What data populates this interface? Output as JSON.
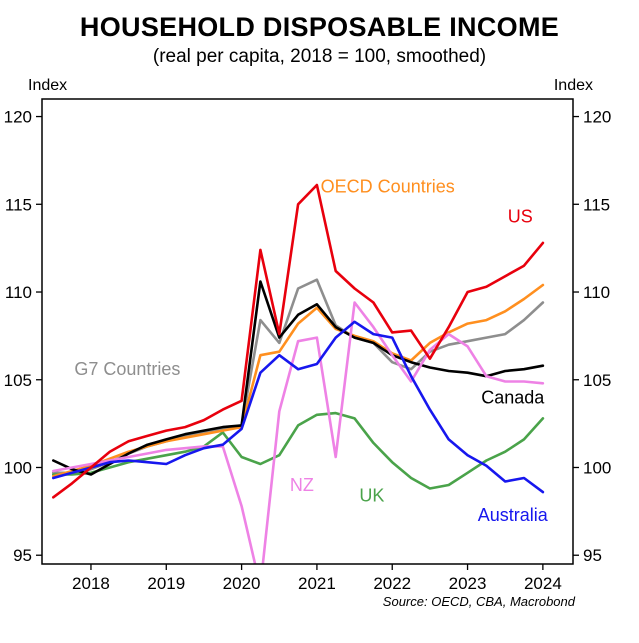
{
  "title": "HOUSEHOLD DISPOSABLE INCOME",
  "subtitle": "(real per capita, 2018 = 100, smoothed)",
  "axis_unit_left": "Index",
  "axis_unit_right": "Index",
  "source": "Source: OECD, CBA, Macrobond",
  "chart_data": {
    "type": "line",
    "title": "HOUSEHOLD DISPOSABLE INCOME",
    "subtitle": "(real per capita, 2018 = 100, smoothed)",
    "ylabel": "Index",
    "x_range": [
      2017.35,
      2024.4
    ],
    "y_range": [
      94.5,
      121
    ],
    "x_ticks": [
      2018,
      2019,
      2020,
      2021,
      2022,
      2023,
      2024
    ],
    "y_ticks": [
      95,
      100,
      105,
      110,
      115,
      120
    ],
    "grid": false,
    "legend": "inline-labels",
    "x": [
      2017.5,
      2017.75,
      2018,
      2018.25,
      2018.5,
      2018.75,
      2019,
      2019.25,
      2019.5,
      2019.75,
      2020,
      2020.25,
      2020.5,
      2020.75,
      2021,
      2021.25,
      2021.5,
      2021.75,
      2022,
      2022.25,
      2022.5,
      2022.75,
      2023,
      2023.25,
      2023.5,
      2023.75,
      2024
    ],
    "series": [
      {
        "name": "G7 Countries",
        "color": "#8e8e8e",
        "values": [
          99.7,
          99.7,
          99.9,
          100.3,
          100.8,
          101.2,
          101.5,
          101.8,
          102.0,
          102.2,
          102.4,
          108.4,
          107.1,
          110.2,
          110.7,
          108.1,
          107.4,
          107.1,
          106.0,
          105.6,
          106.6,
          107.0,
          107.2,
          107.4,
          107.6,
          108.4,
          109.4
        ]
      },
      {
        "name": "UK",
        "color": "#4aa34a",
        "values": [
          99.6,
          99.6,
          99.7,
          100.0,
          100.3,
          100.5,
          100.7,
          100.9,
          101.2,
          102.0,
          100.6,
          100.2,
          100.7,
          102.4,
          103.0,
          103.1,
          102.8,
          101.4,
          100.3,
          99.4,
          98.8,
          99.0,
          99.7,
          100.4,
          100.9,
          101.6,
          102.8
        ]
      },
      {
        "name": "OECD Countries",
        "color": "#ff8f1f",
        "values": [
          99.5,
          99.8,
          100.1,
          100.5,
          100.9,
          101.2,
          101.5,
          101.7,
          101.9,
          102.1,
          102.3,
          106.4,
          106.6,
          108.2,
          109.1,
          107.9,
          107.5,
          107.2,
          106.5,
          106.1,
          107.1,
          107.7,
          108.2,
          108.4,
          108.9,
          109.6,
          110.4
        ]
      },
      {
        "name": "Canada",
        "color": "#000000",
        "values": [
          100.4,
          99.9,
          99.6,
          100.2,
          100.8,
          101.3,
          101.6,
          101.9,
          102.1,
          102.3,
          102.4,
          110.6,
          107.4,
          108.7,
          109.3,
          108.0,
          107.4,
          107.1,
          106.4,
          106.0,
          105.7,
          105.5,
          105.4,
          105.2,
          105.5,
          105.6,
          105.8
        ]
      },
      {
        "name": "NZ",
        "color": "#ee82e5",
        "values": [
          99.8,
          100.0,
          100.2,
          100.4,
          100.6,
          100.8,
          101.0,
          101.1,
          101.2,
          101.2,
          97.8,
          93.2,
          103.2,
          107.2,
          107.4,
          100.6,
          109.4,
          108.0,
          106.4,
          104.9,
          106.7,
          107.6,
          106.9,
          105.2,
          104.9,
          104.9,
          104.8
        ]
      },
      {
        "name": "Australia",
        "color": "#1717ee",
        "values": [
          99.4,
          99.7,
          100.0,
          100.3,
          100.4,
          100.3,
          100.2,
          100.7,
          101.1,
          101.3,
          102.2,
          105.4,
          106.4,
          105.6,
          105.9,
          107.4,
          108.3,
          107.6,
          107.4,
          105.2,
          103.3,
          101.6,
          100.7,
          100.1,
          99.2,
          99.4,
          98.6
        ]
      },
      {
        "name": "US",
        "color": "#e8000d",
        "values": [
          98.3,
          99.1,
          100.0,
          100.9,
          101.5,
          101.8,
          102.1,
          102.3,
          102.7,
          103.3,
          103.8,
          112.4,
          107.6,
          115.0,
          116.1,
          111.2,
          110.2,
          109.4,
          107.7,
          107.8,
          106.2,
          108.0,
          110.0,
          110.3,
          110.9,
          111.5,
          112.8
        ]
      }
    ],
    "labels": [
      {
        "text": "OECD Countries",
        "x": 2021.05,
        "y": 116.0,
        "color": "#ff8f1f",
        "anchor": "start"
      },
      {
        "text": "US",
        "x": 2023.7,
        "y": 114.3,
        "color": "#e8000d",
        "anchor": "middle"
      },
      {
        "text": "G7 Countries",
        "x": 2017.78,
        "y": 105.6,
        "color": "#8e8e8e",
        "anchor": "start"
      },
      {
        "text": "Canada",
        "x": 2023.6,
        "y": 104.0,
        "color": "#000000",
        "anchor": "middle"
      },
      {
        "text": "NZ",
        "x": 2020.8,
        "y": 99.0,
        "color": "#ee82e5",
        "anchor": "middle"
      },
      {
        "text": "UK",
        "x": 2021.73,
        "y": 98.4,
        "color": "#4aa34a",
        "anchor": "middle"
      },
      {
        "text": "Australia",
        "x": 2023.6,
        "y": 97.3,
        "color": "#1717ee",
        "anchor": "middle"
      }
    ]
  }
}
